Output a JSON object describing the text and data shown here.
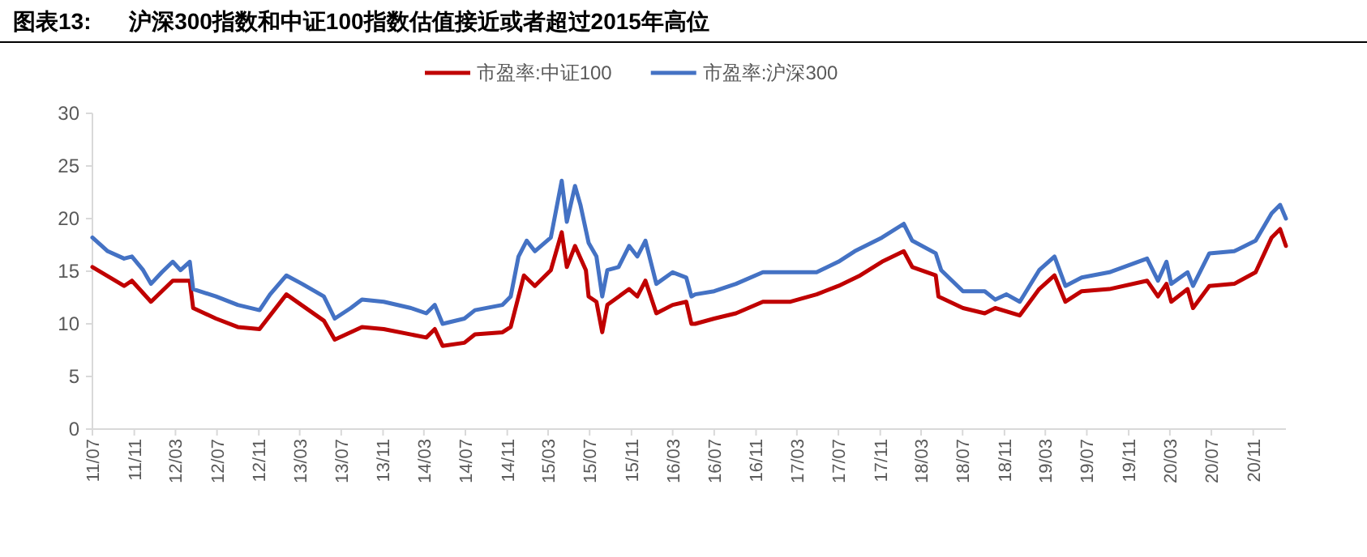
{
  "chart_data": {
    "type": "line",
    "title": "图表13:      沪深300指数和中证100指数估值接近或者超过2015年高位",
    "xlim": [
      "2011-07-01",
      "2021-02-05"
    ],
    "xticks": [
      {
        "value": "2011-07-01",
        "label": "11/07"
      },
      {
        "value": "2011-11-01",
        "label": "11/11"
      },
      {
        "value": "2012-03-01",
        "label": "12/03"
      },
      {
        "value": "2012-07-01",
        "label": "12/07"
      },
      {
        "value": "2012-11-01",
        "label": "12/11"
      },
      {
        "value": "2013-03-01",
        "label": "13/03"
      },
      {
        "value": "2013-07-01",
        "label": "13/07"
      },
      {
        "value": "2013-11-01",
        "label": "13/11"
      },
      {
        "value": "2014-03-01",
        "label": "14/03"
      },
      {
        "value": "2014-07-01",
        "label": "14/07"
      },
      {
        "value": "2014-11-01",
        "label": "14/11"
      },
      {
        "value": "2015-03-01",
        "label": "15/03"
      },
      {
        "value": "2015-07-01",
        "label": "15/07"
      },
      {
        "value": "2015-11-01",
        "label": "15/11"
      },
      {
        "value": "2016-03-01",
        "label": "16/03"
      },
      {
        "value": "2016-07-01",
        "label": "16/07"
      },
      {
        "value": "2016-11-01",
        "label": "16/11"
      },
      {
        "value": "2017-03-01",
        "label": "17/03"
      },
      {
        "value": "2017-07-01",
        "label": "17/07"
      },
      {
        "value": "2017-11-01",
        "label": "17/11"
      },
      {
        "value": "2018-03-01",
        "label": "18/03"
      },
      {
        "value": "2018-07-01",
        "label": "18/07"
      },
      {
        "value": "2018-11-01",
        "label": "18/11"
      },
      {
        "value": "2019-03-01",
        "label": "19/03"
      },
      {
        "value": "2019-07-01",
        "label": "19/07"
      },
      {
        "value": "2019-11-01",
        "label": "19/11"
      },
      {
        "value": "2020-03-01",
        "label": "20/03"
      },
      {
        "value": "2020-07-01",
        "label": "20/07"
      },
      {
        "value": "2020-11-01",
        "label": "20/11"
      }
    ],
    "ylim": [
      0,
      30
    ],
    "yticks": [
      0,
      5,
      10,
      15,
      20,
      25,
      30
    ],
    "grid": false,
    "legend": "top",
    "marker": "none",
    "line_style": "solid",
    "series": [
      {
        "name": "市盈率:中证100",
        "color": "#c00000",
        "x": [
          "2011-07-01",
          "2011-10-02",
          "2011-10-25",
          "2011-12-20",
          "2012-02-22",
          "2012-04-12",
          "2012-04-22",
          "2012-06-28",
          "2012-08-31",
          "2012-11-03",
          "2013-01-21",
          "2013-05-11",
          "2013-06-12",
          "2013-08-31",
          "2013-11-03",
          "2014-03-08",
          "2014-04-02",
          "2014-04-25",
          "2014-06-28",
          "2014-07-29",
          "2014-10-18",
          "2014-11-11",
          "2014-12-20",
          "2015-01-21",
          "2015-03-09",
          "2015-04-10",
          "2015-04-25",
          "2015-05-19",
          "2015-06-20",
          "2015-06-28",
          "2015-07-21",
          "2015-08-07",
          "2015-08-22",
          "2015-10-25",
          "2015-11-18",
          "2015-12-12",
          "2016-01-13",
          "2016-03-01",
          "2016-04-10",
          "2016-04-25",
          "2016-05-06",
          "2016-07-01",
          "2016-09-03",
          "2016-11-21",
          "2017-02-10",
          "2017-04-28",
          "2017-07-01",
          "2017-09-03",
          "2017-11-06",
          "2018-01-09",
          "2018-02-03",
          "2018-04-13",
          "2018-04-21",
          "2018-07-02",
          "2018-09-04",
          "2018-10-05",
          "2018-12-16",
          "2019-02-11",
          "2019-03-28",
          "2019-04-29",
          "2019-06-16",
          "2019-09-05",
          "2019-12-25",
          "2020-01-26",
          "2020-02-20",
          "2020-03-05",
          "2020-04-22",
          "2020-05-08",
          "2020-06-25",
          "2020-09-06",
          "2020-11-08",
          "2020-12-25",
          "2021-01-19",
          "2021-02-05"
        ],
        "values": [
          15.4,
          13.6,
          14.1,
          12.1,
          14.1,
          14.1,
          11.5,
          10.5,
          9.7,
          9.5,
          12.8,
          10.3,
          8.5,
          9.7,
          9.5,
          8.7,
          9.5,
          7.9,
          8.2,
          9.0,
          9.2,
          9.7,
          14.6,
          13.6,
          15.1,
          18.7,
          15.4,
          17.4,
          15.1,
          12.6,
          12.1,
          9.2,
          11.8,
          13.3,
          12.6,
          14.1,
          11.0,
          11.8,
          12.1,
          10.0,
          10.0,
          10.5,
          11.0,
          12.1,
          12.1,
          12.8,
          13.6,
          14.6,
          15.9,
          16.9,
          15.4,
          14.6,
          12.6,
          11.5,
          11.0,
          11.5,
          10.8,
          13.3,
          14.6,
          12.1,
          13.1,
          13.3,
          14.1,
          12.6,
          13.8,
          12.1,
          13.3,
          11.5,
          13.6,
          13.8,
          14.9,
          18.2,
          19.0,
          17.4
        ]
      },
      {
        "name": "市盈率:沪深300",
        "color": "#4472c4",
        "x": [
          "2011-07-01",
          "2011-08-15",
          "2011-10-02",
          "2011-10-25",
          "2011-11-27",
          "2011-12-20",
          "2012-01-21",
          "2012-02-22",
          "2012-03-16",
          "2012-04-12",
          "2012-04-22",
          "2012-06-28",
          "2012-08-31",
          "2012-11-03",
          "2012-12-04",
          "2013-01-21",
          "2013-03-08",
          "2013-05-11",
          "2013-06-12",
          "2013-07-29",
          "2013-08-31",
          "2013-11-03",
          "2014-01-22",
          "2014-03-08",
          "2014-04-02",
          "2014-04-25",
          "2014-06-28",
          "2014-07-29",
          "2014-10-18",
          "2014-11-11",
          "2014-12-04",
          "2014-12-28",
          "2015-01-21",
          "2015-03-09",
          "2015-04-10",
          "2015-04-25",
          "2015-05-19",
          "2015-06-04",
          "2015-06-28",
          "2015-07-21",
          "2015-08-07",
          "2015-08-22",
          "2015-09-24",
          "2015-10-25",
          "2015-11-18",
          "2015-12-12",
          "2016-01-13",
          "2016-03-01",
          "2016-04-10",
          "2016-04-25",
          "2016-05-06",
          "2016-07-01",
          "2016-09-03",
          "2016-11-21",
          "2017-02-10",
          "2017-04-28",
          "2017-07-01",
          "2017-08-18",
          "2017-11-06",
          "2018-01-09",
          "2018-02-03",
          "2018-04-13",
          "2018-04-29",
          "2018-07-02",
          "2018-09-04",
          "2018-10-05",
          "2018-11-07",
          "2018-12-16",
          "2019-02-11",
          "2019-03-28",
          "2019-04-29",
          "2019-06-16",
          "2019-09-05",
          "2019-12-25",
          "2020-01-26",
          "2020-02-20",
          "2020-03-05",
          "2020-04-22",
          "2020-05-08",
          "2020-06-25",
          "2020-09-06",
          "2020-11-08",
          "2020-12-25",
          "2021-01-19",
          "2021-02-05"
        ],
        "values": [
          18.2,
          16.9,
          16.2,
          16.4,
          15.1,
          13.8,
          14.9,
          15.9,
          15.1,
          15.9,
          13.3,
          12.6,
          11.8,
          11.3,
          12.8,
          14.6,
          13.8,
          12.6,
          10.5,
          11.5,
          12.3,
          12.1,
          11.5,
          11.0,
          11.8,
          10.0,
          10.5,
          11.3,
          11.8,
          12.6,
          16.4,
          17.9,
          16.9,
          18.2,
          23.6,
          19.7,
          23.1,
          21.3,
          17.7,
          16.4,
          12.6,
          15.1,
          15.4,
          17.4,
          16.4,
          17.9,
          13.8,
          14.9,
          14.4,
          12.6,
          12.8,
          13.1,
          13.8,
          14.9,
          14.9,
          14.9,
          15.9,
          16.9,
          18.2,
          19.5,
          17.9,
          16.7,
          15.1,
          13.1,
          13.1,
          12.3,
          12.8,
          12.1,
          15.1,
          16.4,
          13.6,
          14.4,
          14.9,
          16.2,
          14.1,
          15.9,
          13.8,
          14.9,
          13.6,
          16.7,
          16.9,
          17.9,
          20.5,
          21.3,
          20.0
        ]
      }
    ]
  }
}
